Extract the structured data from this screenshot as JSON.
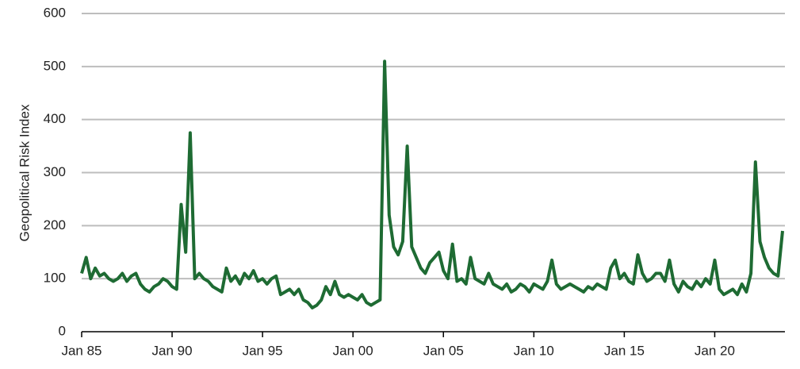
{
  "chart_data": {
    "type": "line",
    "y_label": "Geopolitical Risk Index",
    "color": "#1e6b33",
    "categories": [
      "Jan 85",
      null,
      null,
      null,
      null,
      null,
      null,
      null,
      null,
      null,
      null,
      null,
      null,
      null,
      null,
      null,
      null,
      null,
      null,
      null,
      "Jan 90",
      null,
      null,
      null,
      null,
      null,
      null,
      null,
      null,
      null,
      null,
      null,
      null,
      null,
      null,
      null,
      null,
      null,
      null,
      null,
      "Jan 95",
      null,
      null,
      null,
      null,
      null,
      null,
      null,
      null,
      null,
      null,
      null,
      null,
      null,
      null,
      null,
      null,
      null,
      null,
      null,
      "Jan 00",
      null,
      null,
      null,
      null,
      null,
      null,
      null,
      null,
      null,
      null,
      null,
      null,
      null,
      null,
      null,
      null,
      null,
      null,
      null,
      "Jan 05",
      null,
      null,
      null,
      null,
      null,
      null,
      null,
      null,
      null,
      null,
      null,
      null,
      null,
      null,
      null,
      null,
      null,
      null,
      null,
      "Jan 10",
      null,
      null,
      null,
      null,
      null,
      null,
      null,
      null,
      null,
      null,
      null,
      null,
      null,
      null,
      null,
      null,
      null,
      null,
      null,
      "Jan 15",
      null,
      null,
      null,
      null,
      null,
      null,
      null,
      null,
      null,
      null,
      null,
      null,
      null,
      null,
      null,
      null,
      null,
      null,
      null,
      "Jan 20",
      null,
      null,
      null,
      null,
      null,
      null,
      null,
      null,
      null,
      null,
      null,
      null,
      null,
      null,
      null
    ],
    "values": [
      110,
      140,
      100,
      120,
      105,
      110,
      100,
      95,
      100,
      110,
      95,
      105,
      110,
      90,
      80,
      75,
      85,
      90,
      100,
      95,
      85,
      80,
      240,
      150,
      375,
      100,
      110,
      100,
      95,
      85,
      80,
      75,
      120,
      95,
      105,
      90,
      110,
      100,
      115,
      95,
      100,
      90,
      100,
      105,
      70,
      75,
      80,
      70,
      80,
      60,
      55,
      45,
      50,
      60,
      85,
      70,
      95,
      70,
      65,
      70,
      65,
      60,
      70,
      55,
      50,
      55,
      60,
      510,
      220,
      160,
      145,
      170,
      350,
      160,
      140,
      120,
      110,
      130,
      140,
      150,
      115,
      100,
      165,
      95,
      100,
      90,
      140,
      100,
      95,
      90,
      110,
      90,
      85,
      80,
      90,
      75,
      80,
      90,
      85,
      75,
      90,
      85,
      80,
      95,
      135,
      90,
      80,
      85,
      90,
      85,
      80,
      75,
      85,
      80,
      90,
      85,
      80,
      120,
      135,
      100,
      110,
      95,
      90,
      145,
      110,
      95,
      100,
      110,
      110,
      95,
      135,
      90,
      75,
      95,
      85,
      80,
      95,
      85,
      100,
      90,
      135,
      80,
      70,
      75,
      80,
      70,
      90,
      75,
      110,
      320,
      170,
      140,
      120,
      110,
      105,
      190
    ],
    "ylim": [
      0,
      600
    ],
    "yticks": [
      0,
      100,
      200,
      300,
      400,
      500,
      600
    ],
    "grid": true
  }
}
